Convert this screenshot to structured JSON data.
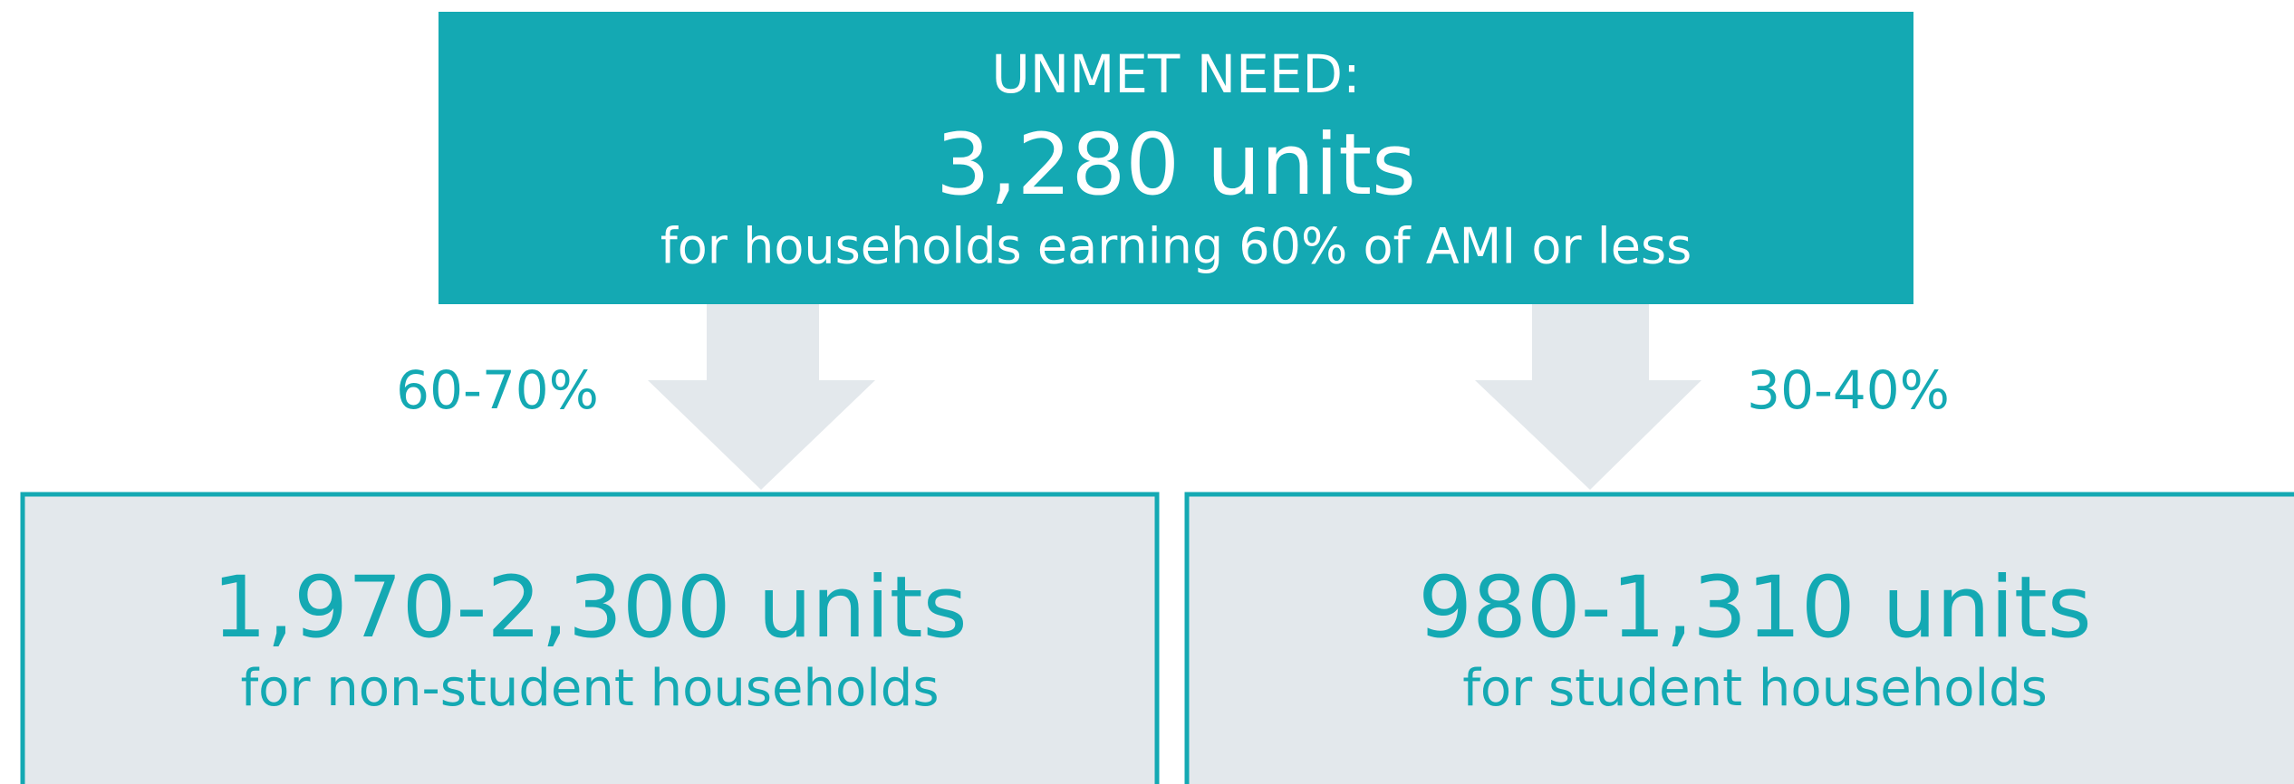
{
  "header": {
    "title": "UNMET NEED:",
    "value": "3,280 units",
    "subtitle": "for households earning 60% of AMI or less"
  },
  "branches": [
    {
      "share": "60-70%",
      "value": "1,970-2,300 units",
      "label": "for non-student households"
    },
    {
      "share": "30-40%",
      "value": "980-1,310 units",
      "label": "for student households"
    }
  ]
}
